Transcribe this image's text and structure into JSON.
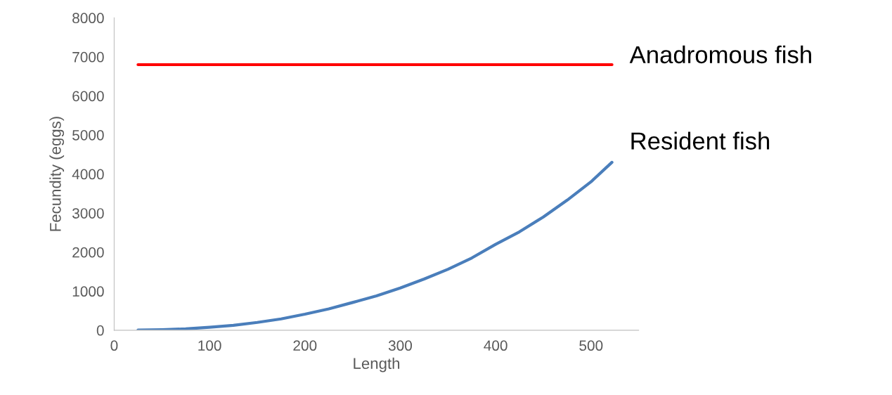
{
  "chart_data": {
    "type": "line",
    "xlabel": "Length",
    "ylabel": "Fecundity (eggs)",
    "xlim": [
      0,
      550
    ],
    "xticks": [
      0,
      100,
      200,
      300,
      400,
      500
    ],
    "ylim": [
      0,
      8000
    ],
    "yticks": [
      0,
      1000,
      2000,
      3000,
      4000,
      5000,
      6000,
      7000,
      8000
    ],
    "grid": false,
    "legend": false,
    "marker": "none",
    "line_style": "solid",
    "series": [
      {
        "name": "Anadromous fish",
        "color": "#ff0000",
        "x": [
          25,
          522
        ],
        "values": [
          6800,
          6800
        ]
      },
      {
        "name": "Resident fish",
        "color": "#4a7ebb",
        "x": [
          25,
          50,
          75,
          100,
          125,
          150,
          175,
          200,
          225,
          250,
          275,
          300,
          325,
          350,
          375,
          400,
          425,
          450,
          475,
          500,
          522
        ],
        "values": [
          5,
          15,
          35,
          75,
          125,
          200,
          290,
          410,
          545,
          710,
          880,
          1080,
          1310,
          1560,
          1850,
          2200,
          2520,
          2900,
          3330,
          3800,
          4300
        ]
      }
    ]
  }
}
